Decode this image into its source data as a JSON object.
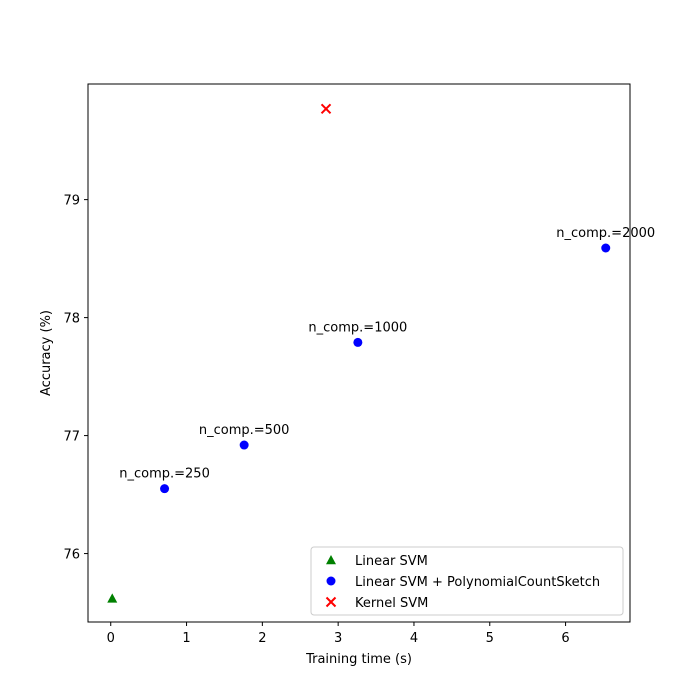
{
  "chart_data": {
    "type": "scatter",
    "title": "",
    "xlabel": "Training time (s)",
    "ylabel": "Accuracy (%)",
    "xlim": [
      -0.3,
      6.85
    ],
    "ylim": [
      75.42,
      79.98
    ],
    "xticks": [
      0,
      1,
      2,
      3,
      4,
      5,
      6
    ],
    "yticks": [
      76,
      77,
      78,
      79
    ],
    "grid": false,
    "legend_position": "lower-right",
    "series": [
      {
        "name": "Linear SVM",
        "marker": "triangle",
        "color": "#008000",
        "points": [
          {
            "x": 0.02,
            "y": 75.62
          }
        ]
      },
      {
        "name": "Linear SVM + PolynomialCountSketch",
        "marker": "circle",
        "color": "#0000ff",
        "points": [
          {
            "x": 0.71,
            "y": 76.55,
            "label": "n_comp.=250"
          },
          {
            "x": 1.76,
            "y": 76.92,
            "label": "n_comp.=500"
          },
          {
            "x": 3.26,
            "y": 77.79,
            "label": "n_comp.=1000"
          },
          {
            "x": 6.53,
            "y": 78.59,
            "label": "n_comp.=2000"
          }
        ]
      },
      {
        "name": "Kernel SVM",
        "marker": "x",
        "color": "#ff0000",
        "points": [
          {
            "x": 2.84,
            "y": 79.77
          }
        ]
      }
    ]
  }
}
